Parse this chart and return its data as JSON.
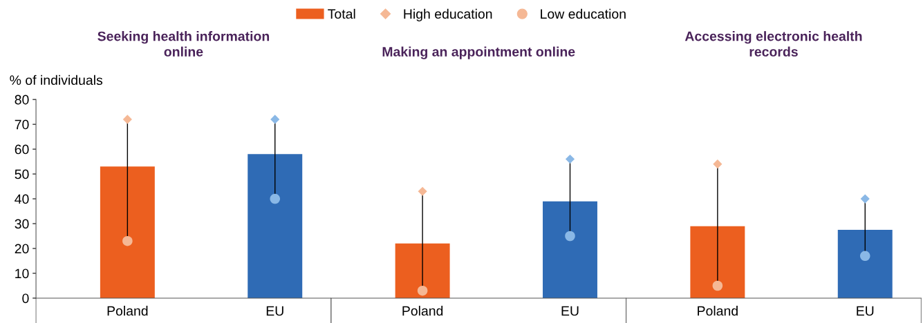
{
  "chart_data": [
    {
      "type": "bar",
      "title": "Seeking health information\nonline",
      "ylabel": "% of individuals",
      "categories": [
        "Poland",
        "EU"
      ],
      "ylim": [
        0,
        80
      ],
      "yticks": [
        0,
        10,
        20,
        30,
        40,
        50,
        60,
        70,
        80
      ],
      "legend": "top",
      "grid": false,
      "series": [
        {
          "name": "Total",
          "colors": [
            "#ec5f1f",
            "#2f6bb5"
          ],
          "values": [
            53,
            58
          ]
        },
        {
          "name": "High education",
          "type": "scatter",
          "marker": "diamond",
          "colors": [
            "#f5b895",
            "#8ab8e6"
          ],
          "values": [
            72,
            72
          ]
        },
        {
          "name": "Low education",
          "type": "scatter",
          "marker": "circle",
          "colors": [
            "#f5b895",
            "#8ab8e6"
          ],
          "values": [
            23,
            40
          ]
        }
      ]
    },
    {
      "type": "bar",
      "title": "Making an appointment online",
      "categories": [
        "Poland",
        "EU"
      ],
      "ylim": [
        0,
        80
      ],
      "tick_labels": "x",
      "grid": false,
      "series": [
        {
          "colors": [
            "#ec5f1f",
            "#2f6bb5"
          ],
          "values": [
            22,
            39
          ]
        },
        {
          "type": "scatter",
          "marker": "diamond",
          "colors": [
            "#f5b895",
            "#8ab8e6"
          ],
          "values": [
            43,
            56
          ]
        },
        {
          "type": "scatter",
          "marker": "circle",
          "colors": [
            "#f5b895",
            "#8ab8e6"
          ],
          "values": [
            3,
            25
          ]
        }
      ]
    },
    {
      "type": "bar",
      "title": "Accessing electronic health\nrecords",
      "categories": [
        "Poland",
        "EU"
      ],
      "ylim": [
        0,
        80
      ],
      "tick_labels": "x",
      "grid": false,
      "series": [
        {
          "colors": [
            "#ec5f1f",
            "#2f6bb5"
          ],
          "values": [
            29,
            27.5
          ]
        },
        {
          "type": "scatter",
          "marker": "diamond",
          "colors": [
            "#f5b895",
            "#8ab8e6"
          ],
          "values": [
            54,
            40
          ]
        },
        {
          "type": "scatter",
          "marker": "circle",
          "colors": [
            "#f5b895",
            "#8ab8e6"
          ],
          "values": [
            5,
            17
          ]
        }
      ]
    }
  ]
}
